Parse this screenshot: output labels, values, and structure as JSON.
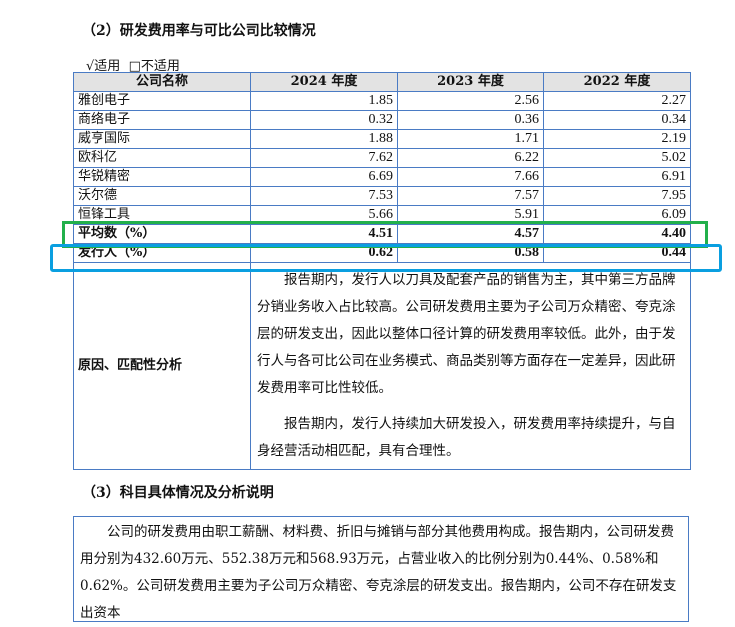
{
  "section2_title": "（2）研发费用率与可比公司比较情况",
  "applicability": {
    "applicable": "√适用",
    "not_applicable": "□不适用"
  },
  "table": {
    "headers": [
      "公司名称",
      "2024 年度",
      "2023 年度",
      "2022 年度"
    ],
    "rows": [
      [
        "雅创电子",
        "1.85",
        "2.56",
        "2.27"
      ],
      [
        "商络电子",
        "0.32",
        "0.36",
        "0.34"
      ],
      [
        "威亨国际",
        "1.88",
        "1.71",
        "2.19"
      ],
      [
        "欧科亿",
        "7.62",
        "6.22",
        "5.02"
      ],
      [
        "华锐精密",
        "6.69",
        "7.66",
        "6.91"
      ],
      [
        "沃尔德",
        "7.53",
        "7.57",
        "7.95"
      ],
      [
        "恒锋工具",
        "5.66",
        "5.91",
        "6.09"
      ]
    ],
    "average": [
      "平均数（%）",
      "4.51",
      "4.57",
      "4.40"
    ],
    "issuer": [
      "发行人（%）",
      "0.62",
      "0.58",
      "0.44"
    ],
    "analysis_label": "原因、匹配性分析",
    "analysis_paragraphs": [
      "报告期内，发行人以刀具及配套产品的销售为主，其中第三方品牌分销业务收入占比较高。公司研发费用主要为子公司万众精密、夸克涂层的研发支出，因此以整体口径计算的研发费用率较低。此外，由于发行人与各可比公司在业务模式、商品类别等方面存在一定差异，因此研发费用率可比性较低。",
      "报告期内，发行人持续加大研发投入，研发费用率持续提升，与自身经营活动相匹配，具有合理性。"
    ]
  },
  "section3_title": "（3）科目具体情况及分析说明",
  "section3_text": "公司的研发费用由职工薪酬、材料费、折旧与摊销与部分其他费用构成。报告期内，公司研发费用分别为432.60万元、552.38万元和568.93万元，占营业收入的比例分别为0.44%、0.58%和0.62%。公司研发费用主要为子公司万众精密、夸克涂层的研发支出。报告期内，公司不存在研发支出资本",
  "highlight_colors": {
    "average_box": "#22b04b",
    "issuer_box": "#0a9fe0"
  }
}
